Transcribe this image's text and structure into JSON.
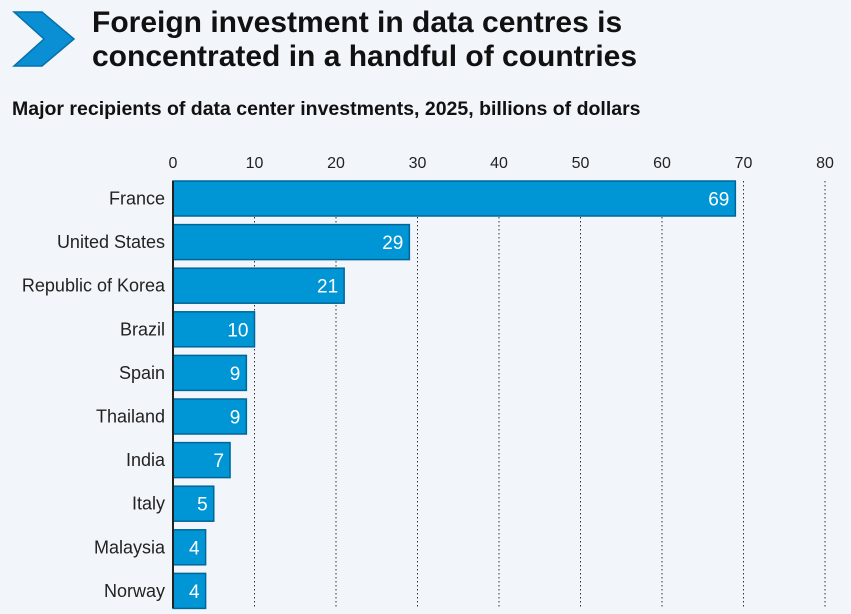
{
  "header": {
    "title_line1": "Foreign investment in data centres is",
    "title_line2": "concentrated in a handful of countries",
    "subtitle": "Major recipients of data center investments, 2025, billions of dollars",
    "icon": "chevron-right-icon"
  },
  "colors": {
    "bar": "#0096d6",
    "bar_edge": "#00669a",
    "chevron": "#0a8fd4",
    "background": "#f2f6fb"
  },
  "chart_data": {
    "type": "bar",
    "orientation": "horizontal",
    "title": "Foreign investment in data centres is concentrated in a handful of countries",
    "subtitle": "Major recipients of data center investments, 2025, billions of dollars",
    "categories": [
      "France",
      "United States",
      "Republic of Korea",
      "Brazil",
      "Spain",
      "Thailand",
      "India",
      "Italy",
      "Malaysia",
      "Norway"
    ],
    "values": [
      69,
      29,
      21,
      10,
      9,
      9,
      7,
      5,
      4,
      4
    ],
    "xlabel": "",
    "ylabel": "",
    "xlim": [
      0,
      80
    ],
    "xticks": [
      0,
      10,
      20,
      30,
      40,
      50,
      60,
      70,
      80
    ],
    "xtick_position": "top",
    "grid": "vertical dotted",
    "data_labels": "inside-end"
  }
}
